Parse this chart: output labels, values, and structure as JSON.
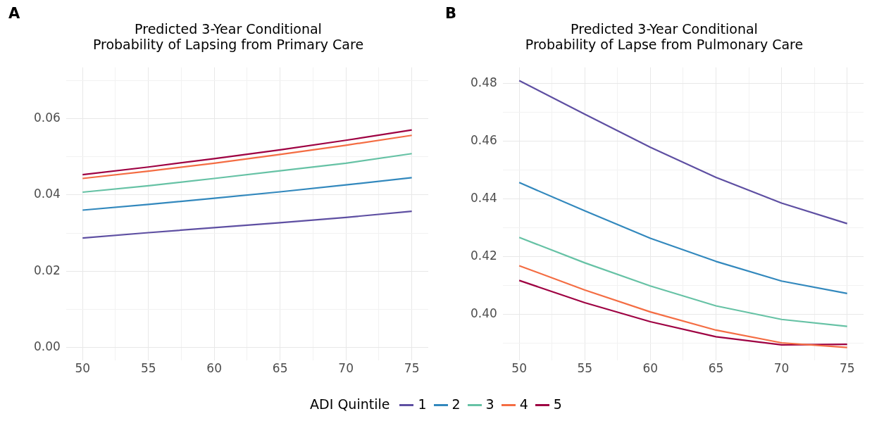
{
  "chart_data": [
    {
      "type": "line",
      "title": "Predicted 3-Year Conditional\nProbability of Lapsing from Primary Care",
      "annotations": [
        "A"
      ],
      "x": [
        50,
        55,
        60,
        65,
        70,
        75
      ],
      "xlim": [
        48.75,
        76.25
      ],
      "xticks": [
        50,
        {
          "value": 52.5,
          "label": null
        },
        55,
        {
          "value": 57.5,
          "label": null
        },
        60,
        {
          "value": 62.5,
          "label": null
        },
        65,
        {
          "value": 67.5,
          "label": null
        },
        70,
        {
          "value": 72.5,
          "label": null
        },
        75
      ],
      "ylim": [
        -0.0033,
        0.0734
      ],
      "yticks": [
        {
          "value": 0,
          "label": "0.00"
        },
        {
          "value": 0.01,
          "label": null
        },
        {
          "value": 0.02,
          "label": "0.02"
        },
        {
          "value": 0.03,
          "label": null
        },
        {
          "value": 0.04,
          "label": "0.04"
        },
        {
          "value": 0.05,
          "label": null
        },
        {
          "value": 0.06,
          "label": "0.06"
        },
        {
          "value": 0.07,
          "label": null
        }
      ],
      "grid": true,
      "legend": "bottom",
      "legend_title": "ADI Quintile",
      "marker": "none",
      "line_style": "solid",
      "series": [
        {
          "name": "1",
          "color": "#5e4fa2",
          "values": [
            0.0287,
            0.0301,
            0.0314,
            0.0327,
            0.0341,
            0.0357
          ]
        },
        {
          "name": "2",
          "color": "#3288bd",
          "values": [
            0.036,
            0.0375,
            0.0391,
            0.0408,
            0.0426,
            0.0445
          ]
        },
        {
          "name": "3",
          "color": "#66c2a5",
          "values": [
            0.0407,
            0.0424,
            0.0443,
            0.0463,
            0.0483,
            0.0508
          ]
        },
        {
          "name": "4",
          "color": "#f46d43",
          "values": [
            0.0443,
            0.0462,
            0.0483,
            0.0506,
            0.053,
            0.0556
          ]
        },
        {
          "name": "5",
          "color": "#9e0142",
          "values": [
            0.0453,
            0.0473,
            0.0495,
            0.0518,
            0.0543,
            0.057
          ]
        }
      ]
    },
    {
      "type": "line",
      "title": "Predicted 3-Year Conditional\nProbability of Lapse from Pulmonary Care",
      "annotations": [
        "B"
      ],
      "x": [
        50,
        55,
        60,
        65,
        70,
        75
      ],
      "xlim": [
        48.75,
        76.25
      ],
      "xticks": [
        50,
        {
          "value": 52.5,
          "label": null
        },
        55,
        {
          "value": 57.5,
          "label": null
        },
        60,
        {
          "value": 62.5,
          "label": null
        },
        65,
        {
          "value": 67.5,
          "label": null
        },
        70,
        {
          "value": 72.5,
          "label": null
        },
        75
      ],
      "ylim": [
        0.3841,
        0.4855
      ],
      "yticks": [
        {
          "value": 0.39,
          "label": null
        },
        {
          "value": 0.4,
          "label": "0.40"
        },
        {
          "value": 0.41,
          "label": null
        },
        {
          "value": 0.42,
          "label": "0.42"
        },
        {
          "value": 0.43,
          "label": null
        },
        {
          "value": 0.44,
          "label": "0.44"
        },
        {
          "value": 0.45,
          "label": null
        },
        {
          "value": 0.46,
          "label": "0.46"
        },
        {
          "value": 0.47,
          "label": null
        },
        {
          "value": 0.48,
          "label": "0.48"
        }
      ],
      "grid": true,
      "marker": "none",
      "line_style": "solid",
      "series": [
        {
          "name": "1",
          "color": "#5e4fa2",
          "values": [
            0.4809,
            0.4693,
            0.4578,
            0.4474,
            0.4385,
            0.4314
          ]
        },
        {
          "name": "2",
          "color": "#3288bd",
          "values": [
            0.4456,
            0.4358,
            0.4263,
            0.4183,
            0.4115,
            0.4072
          ]
        },
        {
          "name": "3",
          "color": "#66c2a5",
          "values": [
            0.4266,
            0.4178,
            0.4098,
            0.4029,
            0.3982,
            0.3958
          ]
        },
        {
          "name": "4",
          "color": "#f46d43",
          "values": [
            0.4168,
            0.4084,
            0.4008,
            0.3945,
            0.3901,
            0.3885
          ]
        },
        {
          "name": "5",
          "color": "#9e0142",
          "values": [
            0.4117,
            0.404,
            0.3974,
            0.3922,
            0.3894,
            0.3896
          ]
        }
      ]
    }
  ]
}
